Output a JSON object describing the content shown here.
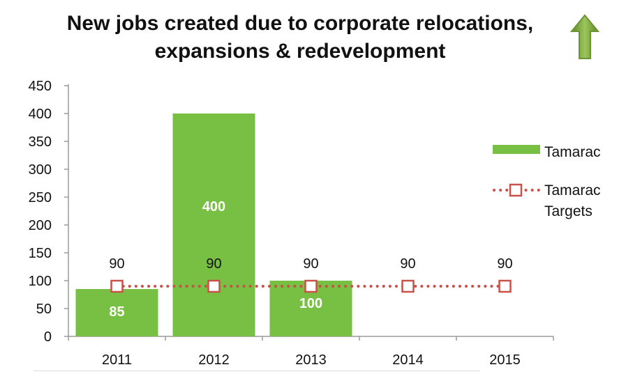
{
  "chart_data": {
    "type": "bar",
    "title_line1": "New jobs created due to corporate relocations,",
    "title_line2": "expansions & redevelopment",
    "categories": [
      "2011",
      "2012",
      "2013",
      "2014",
      "2015"
    ],
    "series": [
      {
        "name": "Tamarac",
        "kind": "bar",
        "values": [
          85,
          400,
          100,
          null,
          null
        ],
        "color": "#77c043"
      },
      {
        "name": "Tamarac Targets",
        "kind": "line",
        "style": "dotted-square-markers",
        "values": [
          90,
          90,
          90,
          90,
          90
        ],
        "color": "#c8514a"
      }
    ],
    "bar_value_labels": [
      "85",
      "400",
      "100"
    ],
    "target_value_labels": [
      "90",
      "90",
      "90",
      "90",
      "90"
    ],
    "yticks": [
      "0",
      "50",
      "100",
      "150",
      "200",
      "250",
      "300",
      "350",
      "400",
      "450"
    ],
    "ylim": [
      0,
      450
    ],
    "legend": {
      "position": "right",
      "entries": [
        "Tamarac",
        "Tamarac Targets"
      ]
    },
    "trend_arrow": {
      "direction": "up",
      "color": "#7aa23c",
      "icon": "up-arrow-icon"
    }
  },
  "legend_text": {
    "tamarac": "Tamarac",
    "targets_line1": "Tamarac",
    "targets_line2": "Targets"
  }
}
